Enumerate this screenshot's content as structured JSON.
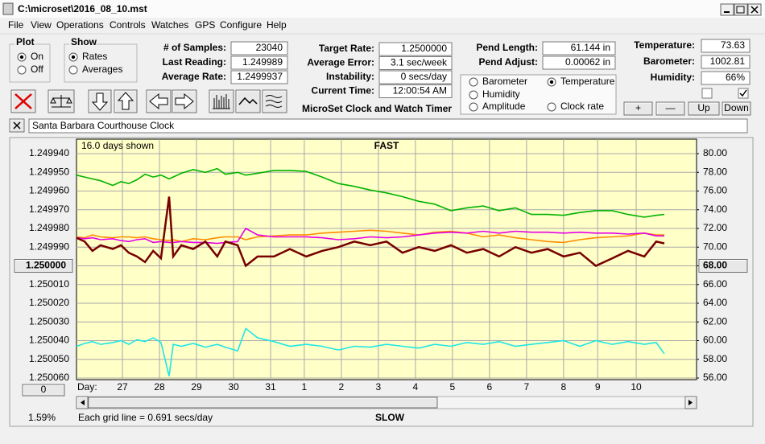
{
  "window": {
    "title": "C:\\microset\\2016_08_10.mst"
  },
  "menu": [
    "File",
    "View",
    "Operations",
    "Controls",
    "Watches",
    "GPS",
    "Configure",
    "Help"
  ],
  "plot": {
    "title": "Plot",
    "options": [
      "On",
      "Off"
    ]
  },
  "show": {
    "title": "Show",
    "options": [
      "Rates",
      "Averages"
    ]
  },
  "fields": [
    [
      {
        "label": "# of Samples:",
        "value": "23040"
      },
      {
        "label": "Last Reading:",
        "value": "1.249989"
      },
      {
        "label": "Average Rate:",
        "value": "1.2499937"
      }
    ],
    [
      {
        "label": "Target Rate:",
        "value": "1.2500000"
      },
      {
        "label": "Average Error:",
        "value": "3.1 sec/week"
      },
      {
        "label": "Instability:",
        "value": "0 secs/day"
      },
      {
        "label": "Current Time:",
        "value": "12:00:54 AM"
      }
    ],
    [
      {
        "label": "Pend Length:",
        "value": "61.144 in"
      },
      {
        "label": "Pend Adjust:",
        "value": "0.00062 in"
      }
    ],
    [
      {
        "label": "Temperature:",
        "value": "73.63"
      },
      {
        "label": "Barometer:",
        "value": "1002.81"
      },
      {
        "label": "Humidity:",
        "value": "66%"
      }
    ]
  ],
  "app_title": "MicroSet Clock and Watch Timer",
  "buttons": [
    "+",
    "—",
    "Up",
    "Down"
  ],
  "watch_name": "Santa Barbara Courthouse Clock",
  "chart_info": {
    "span": "16.0 days shown",
    "top": "FAST",
    "bottom": "SLOW",
    "day_label": "Day:",
    "offset_button": "0",
    "percent": "1.59%",
    "grid_note": "Each grid line = 0.691 secs/day"
  },
  "chart_data": {
    "type": "line",
    "grid": true,
    "xlim": [
      0,
      16.74
    ],
    "xticks": [
      {
        "value": 1.24,
        "label": "27"
      },
      {
        "value": 2.24,
        "label": "28"
      },
      {
        "value": 3.24,
        "label": "29"
      },
      {
        "value": 4.24,
        "label": "30"
      },
      {
        "value": 5.24,
        "label": "31"
      },
      {
        "value": 6.15,
        "label": "1"
      },
      {
        "value": 7.15,
        "label": "2"
      },
      {
        "value": 8.15,
        "label": "3"
      },
      {
        "value": 9.15,
        "label": "4"
      },
      {
        "value": 10.15,
        "label": "5"
      },
      {
        "value": 11.15,
        "label": "6"
      },
      {
        "value": 12.15,
        "label": "7"
      },
      {
        "value": 13.15,
        "label": "8"
      },
      {
        "value": 14.07,
        "label": "9"
      },
      {
        "value": 15.11,
        "label": "10"
      }
    ],
    "ylim": [
      1.24994,
      1.25006
    ],
    "yticks": [
      {
        "value": 1.24994,
        "label": "1.249940"
      },
      {
        "value": 1.24995,
        "label": "1.249950"
      },
      {
        "value": 1.24996,
        "label": "1.249960"
      },
      {
        "value": 1.24997,
        "label": "1.249970"
      },
      {
        "value": 1.24998,
        "label": "1.249980"
      },
      {
        "value": 1.24999,
        "label": "1.249990"
      },
      {
        "value": 1.25,
        "label": "1.250000"
      },
      {
        "value": 1.25001,
        "label": "1.250010"
      },
      {
        "value": 1.25002,
        "label": "1.250020"
      },
      {
        "value": 1.25003,
        "label": "1.250030"
      },
      {
        "value": 1.25004,
        "label": "1.250040"
      },
      {
        "value": 1.25005,
        "label": "1.250050"
      },
      {
        "value": 1.25006,
        "label": "1.250060"
      }
    ],
    "y2lim": [
      80,
      56
    ],
    "y2ticks": [
      {
        "value": 80,
        "label": "80.00"
      },
      {
        "value": 78,
        "label": "78.00"
      },
      {
        "value": 76,
        "label": "76.00"
      },
      {
        "value": 74,
        "label": "74.00"
      },
      {
        "value": 72,
        "label": "72.00"
      },
      {
        "value": 70,
        "label": "70.00"
      },
      {
        "value": 68,
        "label": "68.00"
      },
      {
        "value": 66,
        "label": "66.00"
      },
      {
        "value": 64,
        "label": "64.00"
      },
      {
        "value": 62,
        "label": "62.00"
      },
      {
        "value": 60,
        "label": "60.00"
      },
      {
        "value": 58,
        "label": "58.00"
      },
      {
        "value": 56,
        "label": "56.00"
      }
    ],
    "x": [
      0,
      0.22,
      0.43,
      0.65,
      0.98,
      1.2,
      1.41,
      1.63,
      1.85,
      2.07,
      2.28,
      2.5,
      2.61,
      2.83,
      3.15,
      3.48,
      3.8,
      4.02,
      4.35,
      4.57,
      4.89,
      5.33,
      5.76,
      6.2,
      6.63,
      7.07,
      7.5,
      7.93,
      8.37,
      8.8,
      9.24,
      9.67,
      10.11,
      10.54,
      10.98,
      11.41,
      11.85,
      12.28,
      12.72,
      13.15,
      13.59,
      14.02,
      14.46,
      14.89,
      15.33,
      15.65,
      15.87
    ],
    "series": [
      {
        "name": "Barometer",
        "color": "#ff8c00",
        "axis": "y2",
        "values": [
          71.1,
          71.0,
          71.3,
          71.1,
          71.0,
          71.1,
          71.1,
          71.0,
          71.1,
          70.9,
          70.8,
          70.7,
          70.8,
          70.6,
          70.9,
          70.8,
          71.0,
          71.1,
          71.1,
          70.8,
          71.1,
          71.2,
          71.3,
          71.3,
          71.5,
          71.6,
          71.7,
          71.8,
          71.7,
          71.5,
          71.3,
          71.6,
          71.7,
          71.5,
          71.1,
          71.3,
          71.0,
          70.8,
          70.6,
          70.5,
          70.8,
          71.0,
          71.1,
          71.2,
          71.5,
          71.3,
          71.3
        ]
      },
      {
        "name": "Temperature",
        "color": "#00b400",
        "axis": "y2",
        "values": [
          77.7,
          77.5,
          77.3,
          77.1,
          76.6,
          77.0,
          76.8,
          77.2,
          77.8,
          77.5,
          77.7,
          77.3,
          77.5,
          77.9,
          78.3,
          78.0,
          78.4,
          77.8,
          78.0,
          77.7,
          77.9,
          78.2,
          78.2,
          78.1,
          77.5,
          76.8,
          76.5,
          76.1,
          75.8,
          75.4,
          74.9,
          74.6,
          73.9,
          74.2,
          74.4,
          73.9,
          74.2,
          73.5,
          73.5,
          73.4,
          73.7,
          73.9,
          73.9,
          73.5,
          73.2,
          73.4,
          73.5
        ]
      },
      {
        "name": "Humidity",
        "color": "#e600e6",
        "axis": "y2",
        "values": [
          71.0,
          70.9,
          71.0,
          70.8,
          70.9,
          70.7,
          70.6,
          70.8,
          70.9,
          70.5,
          70.6,
          70.5,
          70.5,
          70.6,
          70.5,
          70.5,
          70.4,
          70.5,
          70.6,
          72.0,
          71.3,
          71.1,
          71.1,
          71.1,
          71.0,
          70.8,
          70.9,
          71.1,
          71.0,
          71.1,
          71.3,
          71.5,
          71.6,
          71.5,
          71.7,
          71.5,
          71.7,
          71.6,
          71.6,
          71.5,
          71.6,
          71.5,
          71.5,
          71.4,
          71.5,
          71.2,
          71.2
        ]
      },
      {
        "name": "Amplitude",
        "color": "#1ee6e6",
        "axis": "y2",
        "values": [
          59.4,
          59.7,
          59.9,
          59.6,
          59.8,
          60.0,
          59.6,
          60.1,
          59.9,
          60.3,
          59.8,
          56.2,
          59.6,
          59.4,
          59.7,
          59.3,
          59.6,
          59.3,
          58.9,
          61.3,
          60.3,
          59.9,
          59.4,
          59.6,
          59.4,
          59.0,
          59.4,
          59.3,
          59.6,
          59.4,
          59.2,
          59.6,
          59.4,
          59.8,
          59.6,
          59.9,
          59.4,
          59.6,
          59.8,
          60.0,
          59.4,
          60.0,
          59.6,
          59.9,
          59.6,
          59.8,
          58.6
        ]
      },
      {
        "name": "Clock rate",
        "color": "#780000",
        "values": [
          1.249985,
          1.249987,
          1.249992,
          1.249989,
          1.249991,
          1.249989,
          1.249993,
          1.249995,
          1.249998,
          1.249992,
          1.249996,
          1.249963,
          1.249995,
          1.249989,
          1.249991,
          1.249987,
          1.249995,
          1.249987,
          1.249989,
          1.25,
          1.249995,
          1.249995,
          1.249991,
          1.249995,
          1.249992,
          1.24999,
          1.249987,
          1.249989,
          1.249987,
          1.249993,
          1.24999,
          1.249992,
          1.249989,
          1.249993,
          1.249991,
          1.249995,
          1.24999,
          1.249993,
          1.249991,
          1.249995,
          1.249993,
          1.25,
          1.249996,
          1.249992,
          1.249995,
          1.249987,
          1.249988
        ]
      }
    ]
  }
}
